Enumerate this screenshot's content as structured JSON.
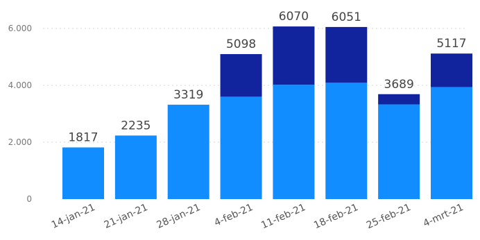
{
  "chart_data": {
    "type": "bar",
    "stacked": true,
    "categories": [
      "14-jan-21",
      "21-jan-21",
      "28-jan-21",
      "4-feb-21",
      "11-feb-21",
      "18-feb-21",
      "25-feb-21",
      "4-mrt-21"
    ],
    "series": [
      {
        "values": [
          1817,
          2235,
          3319,
          3600,
          4020,
          4090,
          3330,
          3940
        ],
        "color": "#118DFF"
      },
      {
        "values": [
          0,
          0,
          0,
          1498,
          2050,
          1961,
          359,
          1177
        ],
        "color": "#12239E"
      }
    ],
    "totals": [
      1817,
      2235,
      3319,
      5098,
      6070,
      6051,
      3689,
      5117
    ],
    "total_labels": [
      "1817",
      "2235",
      "3319",
      "5098",
      "6070",
      "6051",
      "3689",
      "5117"
    ],
    "y_ticks": [
      0,
      2000,
      4000,
      6000
    ],
    "y_tick_labels": [
      "0",
      "2.000",
      "4.000",
      "6.000"
    ],
    "ylim": [
      0,
      6000
    ],
    "title": "",
    "xlabel": "",
    "ylabel": "",
    "grid": true,
    "legend": "none"
  }
}
